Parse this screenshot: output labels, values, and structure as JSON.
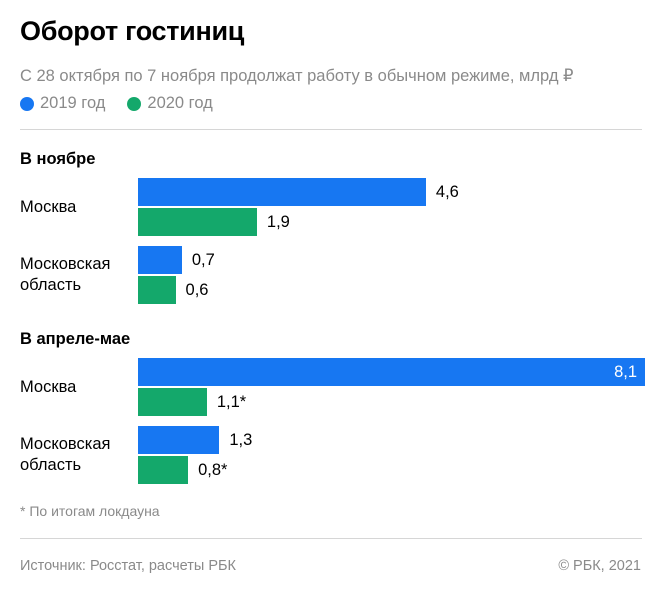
{
  "header": {
    "title": "Оборот гостиниц",
    "subtitle": "С 28 октября по 7 ноября продолжат работу в обычном режиме, млрд ₽"
  },
  "chart_data": [
    {
      "type": "bar",
      "orientation": "horizontal",
      "title": "В ноябре",
      "categories": [
        "Москва",
        "Московская область"
      ],
      "series": [
        {
          "name": "2019 год",
          "color": "#1777f2",
          "values": [
            4.6,
            0.7
          ],
          "value_labels": [
            "4,6",
            "0,7"
          ]
        },
        {
          "name": "2020 год",
          "color": "#14a86b",
          "values": [
            1.9,
            0.6
          ],
          "value_labels": [
            "1,9",
            "0,6"
          ]
        }
      ]
    },
    {
      "type": "bar",
      "orientation": "horizontal",
      "title": "В апреле-мае",
      "categories": [
        "Москва",
        "Московская область"
      ],
      "series": [
        {
          "name": "2019 год",
          "color": "#1777f2",
          "values": [
            8.1,
            1.3
          ],
          "value_labels": [
            "8,1",
            "1,3"
          ]
        },
        {
          "name": "2020 год",
          "color": "#14a86b",
          "values": [
            1.1,
            0.8
          ],
          "value_labels": [
            "1,1*",
            "0,8*"
          ]
        }
      ]
    }
  ],
  "footnote": "* По итогам локдауна",
  "source": "Источник: Росстат, расчеты РБК",
  "credit": "© РБК, 2021"
}
